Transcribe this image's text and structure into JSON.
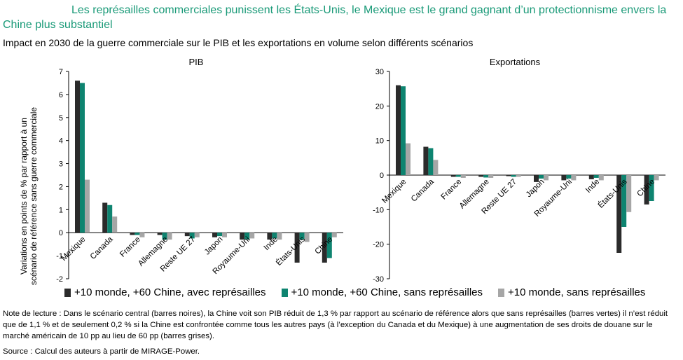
{
  "title": "Les représailles commerciales punissent les États-Unis, le Mexique est le grand gagnant d’un protectionnisme envers la Chine plus substantiel",
  "subtitle": "Impact en 2030 de la guerre commerciale sur le PIB et les exportations en volume selon différents scénarios",
  "note": "Note de lecture : Dans le scénario central (barres noires), la Chine voit son PIB réduit de 1,3 % par rapport au scénario de référence alors que sans représailles (barres vertes) il n’est réduit que de 1,1 % et de seulement 0,2 % si la Chine est confrontée comme tous les autres pays (à l’exception du Canada et du Mexique) à une augmentation de ses droits de douane sur le marché américain de 10 pp au lieu de 60 pp (barres grises).",
  "source": "Source : Calcul des auteurs à partir de MIRAGE-Power.",
  "colors": {
    "title": "#1a9a78",
    "black": "#2b2b2b",
    "green": "#0e8470",
    "grey": "#a6a6a6"
  },
  "legend": [
    {
      "label": "+10 monde, +60 Chine, avec représailles",
      "color": "#2b2b2b"
    },
    {
      "label": "+10 monde, +60 Chine, sans représailles",
      "color": "#0e8470"
    },
    {
      "label": "+10 monde,  sans représailles",
      "color": "#a6a6a6"
    }
  ],
  "chart_data": [
    {
      "type": "bar",
      "title": "PIB",
      "ylabel": "Variations en points de % par rapport à un scénario de référence sans guerre commerciale",
      "ylim": [
        -2,
        7
      ],
      "yticks": [
        -2,
        -1,
        0,
        1,
        2,
        3,
        4,
        5,
        6,
        7
      ],
      "categories": [
        "Mexique",
        "Canada",
        "France",
        "Allemagne",
        "Reste UE 27",
        "Japon",
        "Royaume-Uni",
        "Inde",
        "États-Unis",
        "Chine"
      ],
      "series": [
        {
          "name": "+10 monde, +60 Chine, avec représailles",
          "values": [
            6.6,
            1.3,
            -0.1,
            -0.1,
            -0.15,
            -0.2,
            -0.3,
            -0.3,
            -1.3,
            -1.3
          ]
        },
        {
          "name": "+10 monde, +60 Chine, sans représailles",
          "values": [
            6.5,
            1.2,
            -0.1,
            -0.3,
            -0.25,
            -0.15,
            -0.3,
            -0.25,
            -0.3,
            -1.1
          ]
        },
        {
          "name": "+10 monde,  sans représailles",
          "values": [
            2.3,
            0.7,
            -0.2,
            -0.3,
            -0.2,
            -0.2,
            -0.25,
            -0.3,
            -0.4,
            -0.2
          ]
        }
      ]
    },
    {
      "type": "bar",
      "title": "Exportations",
      "ylabel": "",
      "ylim": [
        -30,
        30
      ],
      "yticks": [
        -30,
        -20,
        -10,
        0,
        10,
        20,
        30
      ],
      "categories": [
        "Mexique",
        "Canada",
        "France",
        "Allemagne",
        "Reste UE 27",
        "Japon",
        "Royaume-Uni",
        "Inde",
        "États-Unis",
        "Chine"
      ],
      "series": [
        {
          "name": "+10 monde, +60 Chine, avec représailles",
          "values": [
            26,
            8.2,
            -0.5,
            -0.5,
            -0.3,
            -2,
            -1.5,
            -1.2,
            -22.5,
            -8.5
          ]
        },
        {
          "name": "+10 monde, +60 Chine, sans représailles",
          "values": [
            25.7,
            7.8,
            -0.5,
            -0.7,
            -0.5,
            -1,
            -1,
            -0.8,
            -15,
            -7.5
          ]
        },
        {
          "name": "+10 monde,  sans représailles",
          "values": [
            9.2,
            4.4,
            -0.8,
            -0.8,
            -0.5,
            -1.5,
            -1.5,
            -1.5,
            -10.7,
            -1.5
          ]
        }
      ]
    }
  ]
}
